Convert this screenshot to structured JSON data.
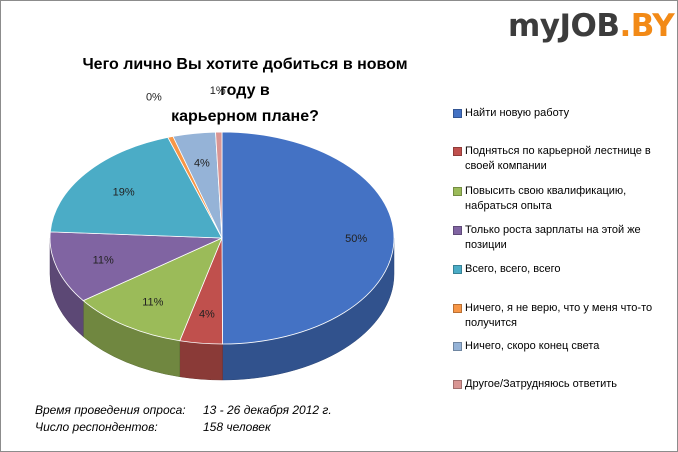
{
  "logo": {
    "part1": "myJOB",
    "part2": ".BY"
  },
  "chart_data": {
    "type": "pie",
    "title_line1": "Чего лично Вы хотите добиться в новом году в",
    "title_line2": "карьерном плане?",
    "slices": [
      {
        "label": "Найти новую работу",
        "value": 50,
        "display": "50%",
        "color": "#4472c4"
      },
      {
        "label": "Подняться по карьерной лестнице в своей компании",
        "value": 4,
        "display": "4%",
        "color": "#c0504d"
      },
      {
        "label": "Повысить свою квалификацию, набраться опыта",
        "value": 11,
        "display": "11%",
        "color": "#9bbb59"
      },
      {
        "label": "Только роста зарплаты на этой же позиции",
        "value": 11,
        "display": "11%",
        "color": "#8064a2"
      },
      {
        "label": "Всего, всего, всего",
        "value": 19,
        "display": "19%",
        "color": "#4bacc6"
      },
      {
        "label": "Ничего, я не верю, что у меня что-то получится",
        "value": 0.5,
        "display": "0%",
        "color": "#f79646"
      },
      {
        "label": "Ничего, скоро конец света",
        "value": 4,
        "display": "4%",
        "color": "#95b3d7"
      },
      {
        "label": "Другое/Затрудняюсь ответить",
        "value": 0.6,
        "display": "1%",
        "color": "#d99694"
      }
    ],
    "legend_placement": "right"
  },
  "footer": {
    "date_label": "Время проведения опроса:",
    "date_value": "13 - 26 декабря 2012 г.",
    "count_label": "Число респондентов:",
    "count_value": "158 человек"
  }
}
